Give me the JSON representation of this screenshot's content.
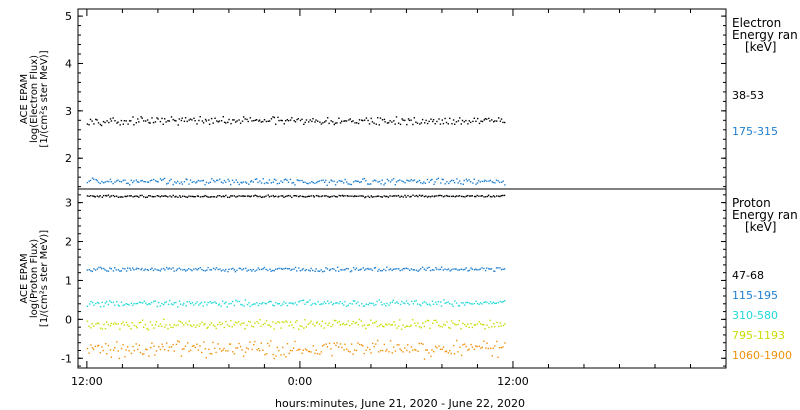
{
  "chart_data": [
    {
      "type": "scatter",
      "panel": "electron",
      "ylabel_lines": [
        "ACE EPAM",
        "log(Electron Flux)",
        "[1/(cm²s ster MeV)]"
      ],
      "ylim": [
        1.35,
        5.15
      ],
      "yticks": [
        2,
        3,
        4,
        5
      ],
      "legend": {
        "title_lines": [
          "Electron",
          "Energy ran",
          "[keV]"
        ],
        "placement": "right"
      },
      "series": [
        {
          "name": "38-53",
          "color": "#000000",
          "level": 2.8,
          "spread": 0.06,
          "end_hours": 23.5
        },
        {
          "name": "175-315",
          "color": "#1f7fd0",
          "level": 1.52,
          "spread": 0.05,
          "end_hours": 23.5
        }
      ]
    },
    {
      "type": "scatter",
      "panel": "proton",
      "ylabel_lines": [
        "ACE EPAM",
        "log(Proton Flux)",
        "[1/(cm²s ster MeV)]"
      ],
      "ylim": [
        -1.25,
        3.35
      ],
      "yticks": [
        -1,
        0,
        1,
        2,
        3
      ],
      "legend": {
        "title_lines": [
          "Proton",
          "Energy ran",
          "[keV]"
        ],
        "placement": "right"
      },
      "series": [
        {
          "name": "47-68",
          "color": "#000000",
          "level": 3.18,
          "spread": 0.02,
          "end_hours": 23.5
        },
        {
          "name": "115-195",
          "color": "#1f7fd0",
          "level": 1.3,
          "spread": 0.04,
          "end_hours": 23.5
        },
        {
          "name": "310-580",
          "color": "#20d8d8",
          "level": 0.43,
          "spread": 0.06,
          "end_hours": 23.5
        },
        {
          "name": "795-1193",
          "color": "#c8dc00",
          "level": -0.12,
          "spread": 0.09,
          "end_hours": 23.5
        },
        {
          "name": "1060-1900",
          "color": "#f0900a",
          "level": -0.75,
          "spread": 0.16,
          "end_hours": 23.5
        }
      ]
    }
  ],
  "x_axis": {
    "xlabel": "hours:minutes, June 21, 2020 - June 22, 2020",
    "xlim_hours": [
      -0.5,
      36.0
    ],
    "ticks": [
      {
        "hours": 0,
        "label": "12:00"
      },
      {
        "hours": 12,
        "label": "0:00"
      },
      {
        "hours": 24,
        "label": "12:00"
      }
    ],
    "minor_step_hours": 2,
    "grid": false
  }
}
